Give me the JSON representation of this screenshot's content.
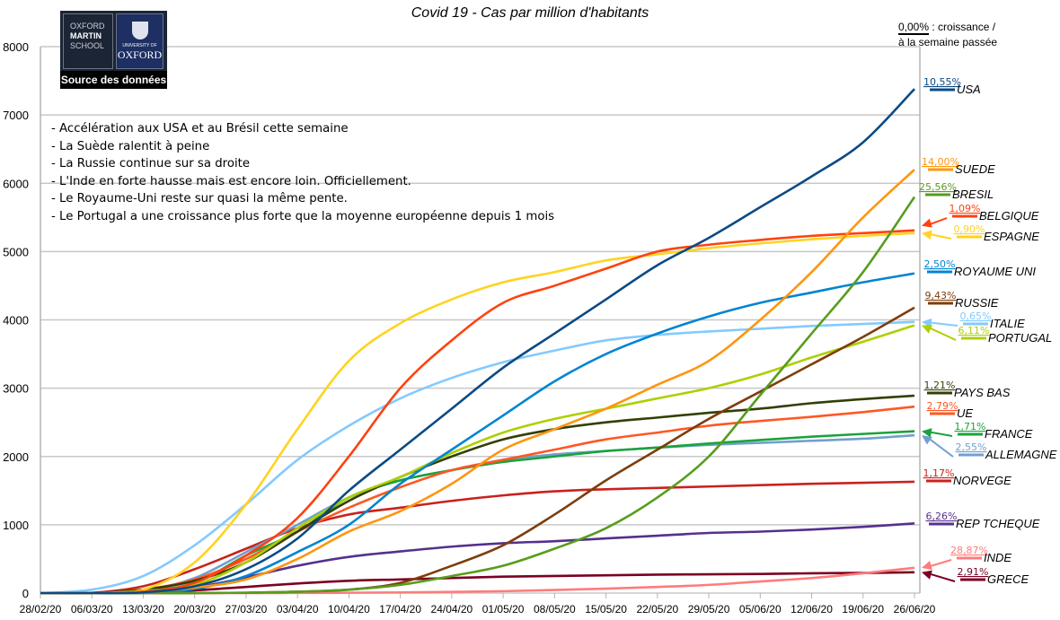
{
  "chart_data": {
    "type": "line",
    "title": "Covid 19 - Cas par million d'habitants",
    "xlabel": "",
    "ylabel": "",
    "ylim": [
      0,
      8000
    ],
    "yticks": [
      "0",
      "1000",
      "2000",
      "3000",
      "4000",
      "5000",
      "6000",
      "7000",
      "8000"
    ],
    "x": [
      "28/02/20",
      "06/03/20",
      "13/03/20",
      "20/03/20",
      "27/03/20",
      "03/04/20",
      "10/04/20",
      "17/04/20",
      "24/04/20",
      "01/05/20",
      "08/05/20",
      "15/05/20",
      "22/05/20",
      "29/05/20",
      "05/06/20",
      "12/06/20",
      "19/06/20",
      "26/06/20"
    ],
    "grid": true,
    "legend": "right",
    "series": [
      {
        "name": "USA",
        "growth": "10,55%",
        "color": "#0b4a85",
        "values": [
          0,
          0,
          10,
          100,
          350,
          800,
          1500,
          2100,
          2700,
          3300,
          3800,
          4300,
          4800,
          5200,
          5650,
          6100,
          6600,
          7380
        ]
      },
      {
        "name": "SUEDE",
        "growth": "14,00%",
        "color": "#ff950e",
        "values": [
          0,
          0,
          10,
          80,
          200,
          500,
          900,
          1200,
          1600,
          2100,
          2400,
          2700,
          3050,
          3400,
          4000,
          4700,
          5500,
          6200
        ]
      },
      {
        "name": "BRESIL",
        "growth": "25,56%",
        "color": "#579d1c",
        "values": [
          0,
          0,
          0,
          0,
          5,
          20,
          50,
          120,
          250,
          400,
          650,
          950,
          1400,
          2000,
          2900,
          3800,
          4700,
          5800
        ]
      },
      {
        "name": "BELGIQUE",
        "growth": "1,09%",
        "color": "#ff420e",
        "values": [
          0,
          0,
          20,
          150,
          550,
          1100,
          2000,
          3000,
          3700,
          4250,
          4500,
          4750,
          5000,
          5100,
          5170,
          5230,
          5270,
          5310
        ]
      },
      {
        "name": "ESPAGNE",
        "growth": "0,90%",
        "color": "#ffd320",
        "values": [
          0,
          0,
          50,
          450,
          1300,
          2400,
          3400,
          3950,
          4300,
          4550,
          4700,
          4870,
          4960,
          5050,
          5120,
          5180,
          5230,
          5270
        ]
      },
      {
        "name": "ROYAUME UNI",
        "growth": "2,50%",
        "color": "#0084d1",
        "values": [
          0,
          0,
          5,
          60,
          250,
          600,
          1000,
          1600,
          2100,
          2600,
          3100,
          3500,
          3800,
          4050,
          4250,
          4400,
          4550,
          4680
        ]
      },
      {
        "name": "RUSSIE",
        "growth": "9,43%",
        "color": "#7e3d0a",
        "values": [
          0,
          0,
          0,
          0,
          5,
          20,
          50,
          150,
          400,
          700,
          1150,
          1650,
          2100,
          2550,
          2950,
          3350,
          3750,
          4180
        ]
      },
      {
        "name": "ITALIE",
        "growth": "0,65%",
        "color": "#83caff",
        "values": [
          0,
          50,
          250,
          700,
          1300,
          1950,
          2450,
          2850,
          3150,
          3380,
          3550,
          3700,
          3780,
          3830,
          3870,
          3910,
          3940,
          3970
        ]
      },
      {
        "name": "PORTUGAL",
        "growth": "6,11%",
        "color": "#aecf00",
        "values": [
          0,
          0,
          30,
          120,
          450,
          950,
          1400,
          1700,
          2050,
          2350,
          2550,
          2700,
          2850,
          3000,
          3200,
          3450,
          3680,
          3920
        ]
      },
      {
        "name": "PAYS BAS",
        "growth": "1,21%",
        "color": "#314004",
        "values": [
          0,
          0,
          50,
          180,
          450,
          900,
          1350,
          1700,
          2000,
          2250,
          2400,
          2500,
          2570,
          2640,
          2700,
          2780,
          2840,
          2890
        ]
      },
      {
        "name": "UE",
        "growth": "2,79%",
        "color": "#ff5722",
        "values": [
          0,
          0,
          50,
          200,
          500,
          900,
          1250,
          1550,
          1800,
          1950,
          2100,
          2250,
          2350,
          2450,
          2520,
          2580,
          2650,
          2730
        ]
      },
      {
        "name": "FRANCE",
        "growth": "1,71%",
        "color": "#1aa33a",
        "values": [
          0,
          0,
          30,
          150,
          550,
          900,
          1400,
          1650,
          1800,
          1920,
          2000,
          2080,
          2130,
          2190,
          2240,
          2290,
          2330,
          2370
        ]
      },
      {
        "name": "ALLEMAGNE",
        "growth": "2,55%",
        "color": "#729fcf",
        "values": [
          0,
          0,
          30,
          220,
          600,
          1000,
          1400,
          1650,
          1800,
          1950,
          2030,
          2080,
          2130,
          2170,
          2200,
          2230,
          2260,
          2310
        ]
      },
      {
        "name": "NORVEGE",
        "growth": "1,17%",
        "color": "#c9211e",
        "values": [
          0,
          5,
          100,
          350,
          650,
          950,
          1150,
          1250,
          1350,
          1430,
          1490,
          1520,
          1540,
          1560,
          1580,
          1600,
          1615,
          1630
        ]
      },
      {
        "name": "REP TCHEQUE",
        "growth": "6,26%",
        "color": "#55308d",
        "values": [
          0,
          0,
          15,
          80,
          230,
          400,
          530,
          610,
          680,
          730,
          760,
          800,
          840,
          880,
          900,
          930,
          970,
          1020
        ]
      },
      {
        "name": "INDE",
        "growth": "28,87%",
        "color": "#ff7b7b",
        "values": [
          0,
          0,
          0,
          0,
          1,
          2,
          5,
          10,
          18,
          28,
          45,
          65,
          90,
          120,
          170,
          220,
          290,
          370
        ]
      },
      {
        "name": "GRECE",
        "growth": "2,91%",
        "color": "#7a0021",
        "values": [
          0,
          0,
          10,
          40,
          90,
          140,
          180,
          200,
          220,
          240,
          250,
          260,
          270,
          275,
          280,
          290,
          295,
          305
        ]
      }
    ],
    "annotations": [
      "- Accélération aux USA et au Brésil cette semaine",
      "- La Suède ralentit à peine",
      "- La Russie continue sur sa droite",
      "- L'Inde en forte hausse mais est encore loin. Officiellement.",
      "- Le Royaume-Uni reste sur quasi la même pente.",
      "- Le Portugal a une croissance plus forte que la moyenne européenne depuis 1 mois"
    ]
  },
  "legend_note": {
    "value": "0,00%",
    "text1": " : croissance /",
    "text2": "à la semaine passée"
  },
  "logo": {
    "om1": "OXFORD",
    "om2": "MARTIN",
    "om3": "SCHOOL",
    "ox1": "UNIVERSITY OF",
    "ox2": "OXFORD",
    "source": "Source des données"
  }
}
